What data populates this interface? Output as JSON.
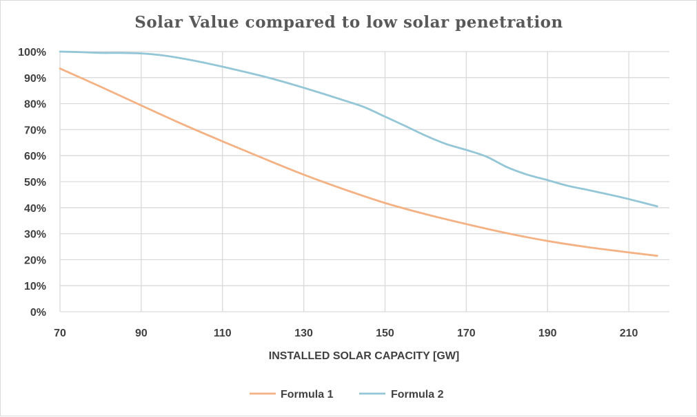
{
  "chart_data": {
    "type": "line",
    "title": "Solar Value compared to low solar penetration",
    "xlabel": "INSTALLED SOLAR CAPACITY [GW]",
    "ylabel": "",
    "xlim": [
      70,
      220
    ],
    "ylim": [
      0,
      100
    ],
    "x_ticks": [
      "70",
      "90",
      "110",
      "130",
      "150",
      "170",
      "190",
      "210"
    ],
    "y_ticks": [
      "0%",
      "10%",
      "20%",
      "30%",
      "40%",
      "50%",
      "60%",
      "70%",
      "80%",
      "90%",
      "100%"
    ],
    "grid": true,
    "legend_position": "bottom",
    "series": [
      {
        "name": "Formula 1",
        "color": "#f4b183",
        "x": [
          70,
          80,
          90,
          100,
          110,
          120,
          130,
          140,
          150,
          160,
          170,
          180,
          190,
          200,
          210,
          217
        ],
        "y": [
          93.5,
          86.5,
          79.3,
          72.2,
          65.5,
          59,
          52.7,
          47,
          41.8,
          37.5,
          33.7,
          30.2,
          27.2,
          24.8,
          22.8,
          21.5
        ]
      },
      {
        "name": "Formula 2",
        "color": "#93c6d6",
        "x": [
          70,
          75,
          80,
          85,
          90,
          95,
          100,
          105,
          110,
          115,
          120,
          125,
          130,
          135,
          140,
          145,
          150,
          155,
          160,
          165,
          170,
          175,
          180,
          185,
          190,
          195,
          200,
          205,
          210,
          217
        ],
        "y": [
          100,
          99.8,
          99.5,
          99.5,
          99.3,
          98.6,
          97.4,
          95.9,
          94.2,
          92.4,
          90.5,
          88.4,
          86.1,
          83.7,
          81.2,
          78.6,
          75,
          71.4,
          67.7,
          64.5,
          62.2,
          59.6,
          55.6,
          52.7,
          50.6,
          48.4,
          46.8,
          45.1,
          43.3,
          40.5
        ]
      }
    ]
  }
}
